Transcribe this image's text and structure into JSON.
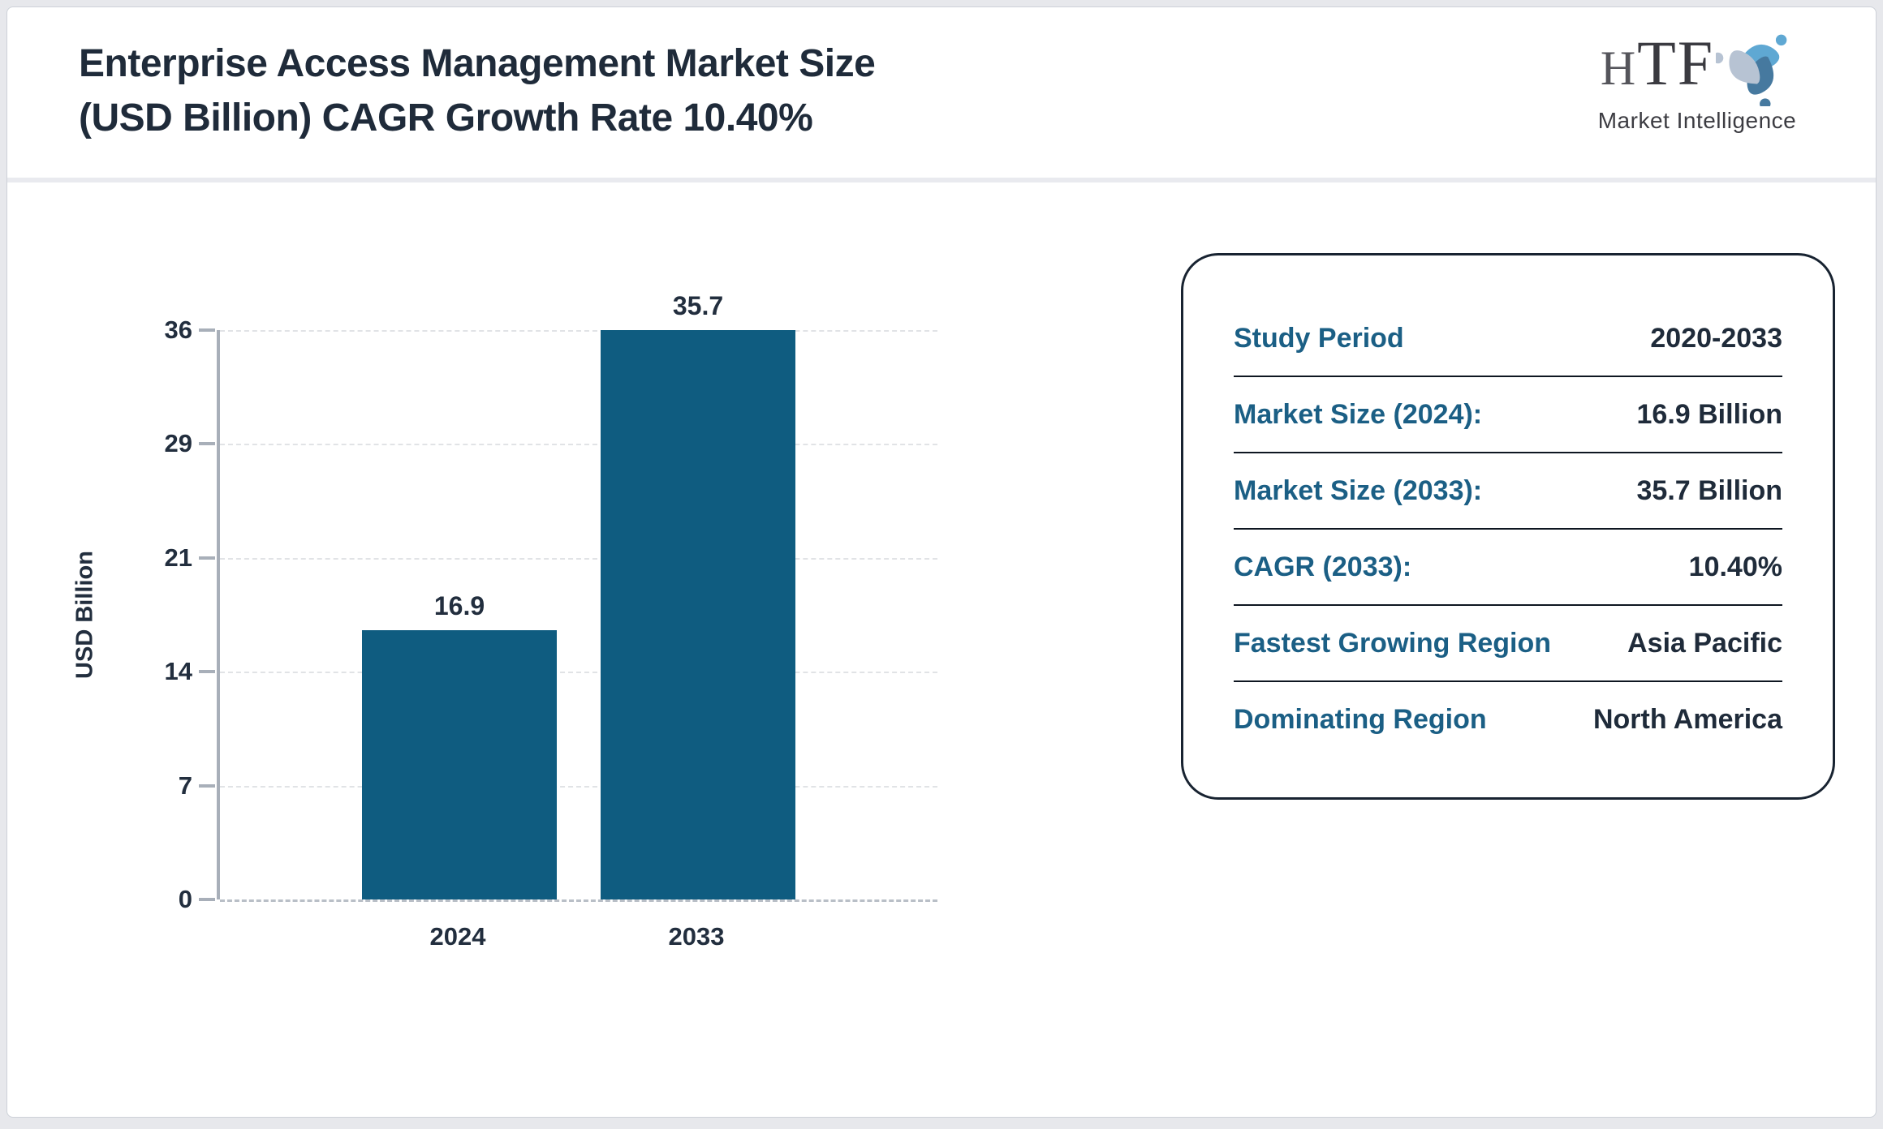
{
  "header": {
    "title_line1": "Enterprise Access Management Market Size",
    "title_line2": "(USD Billion) CAGR Growth Rate 10.40%"
  },
  "logo": {
    "h": "H",
    "tf": "TF",
    "subtext": "Market Intelligence",
    "swirl_colors": [
      "#5fa8d3",
      "#46799f",
      "#b7c3d3"
    ]
  },
  "chart_data": {
    "type": "bar",
    "title": "Enterprise Access Management Market Size (USD Billion) CAGR Growth Rate 10.40%",
    "categories": [
      "2024",
      "2033"
    ],
    "values": [
      16.9,
      35.7
    ],
    "value_labels": [
      "16.9",
      "35.7"
    ],
    "xlabel": "",
    "ylabel": "USD Billion",
    "ylim": [
      0,
      35.7
    ],
    "ytick_labels_bottom_to_top": [
      "0",
      "7",
      "14",
      "21",
      "29",
      "36"
    ],
    "grid": "horizontal dashed, legend none",
    "bar_color": "#0f5c80"
  },
  "info_panel": {
    "rows": [
      {
        "label": "Study Period",
        "value": "2020-2033"
      },
      {
        "label": "Market Size (2024):",
        "value": "16.9 Billion"
      },
      {
        "label": "Market Size (2033):",
        "value": "35.7 Billion"
      },
      {
        "label": "CAGR (2033):",
        "value": "10.40%"
      },
      {
        "label": "Fastest Growing Region",
        "value": "Asia Pacific"
      },
      {
        "label": "Dominating Region",
        "value": "North America"
      }
    ]
  },
  "colors": {
    "bar": "#0f5c80",
    "accent_teal": "#1b5f85",
    "navy_text": "#1f2b3a",
    "page_background": "#e7e8ec",
    "gridline": "#e1e3e6",
    "axis": "#a8afb9"
  }
}
